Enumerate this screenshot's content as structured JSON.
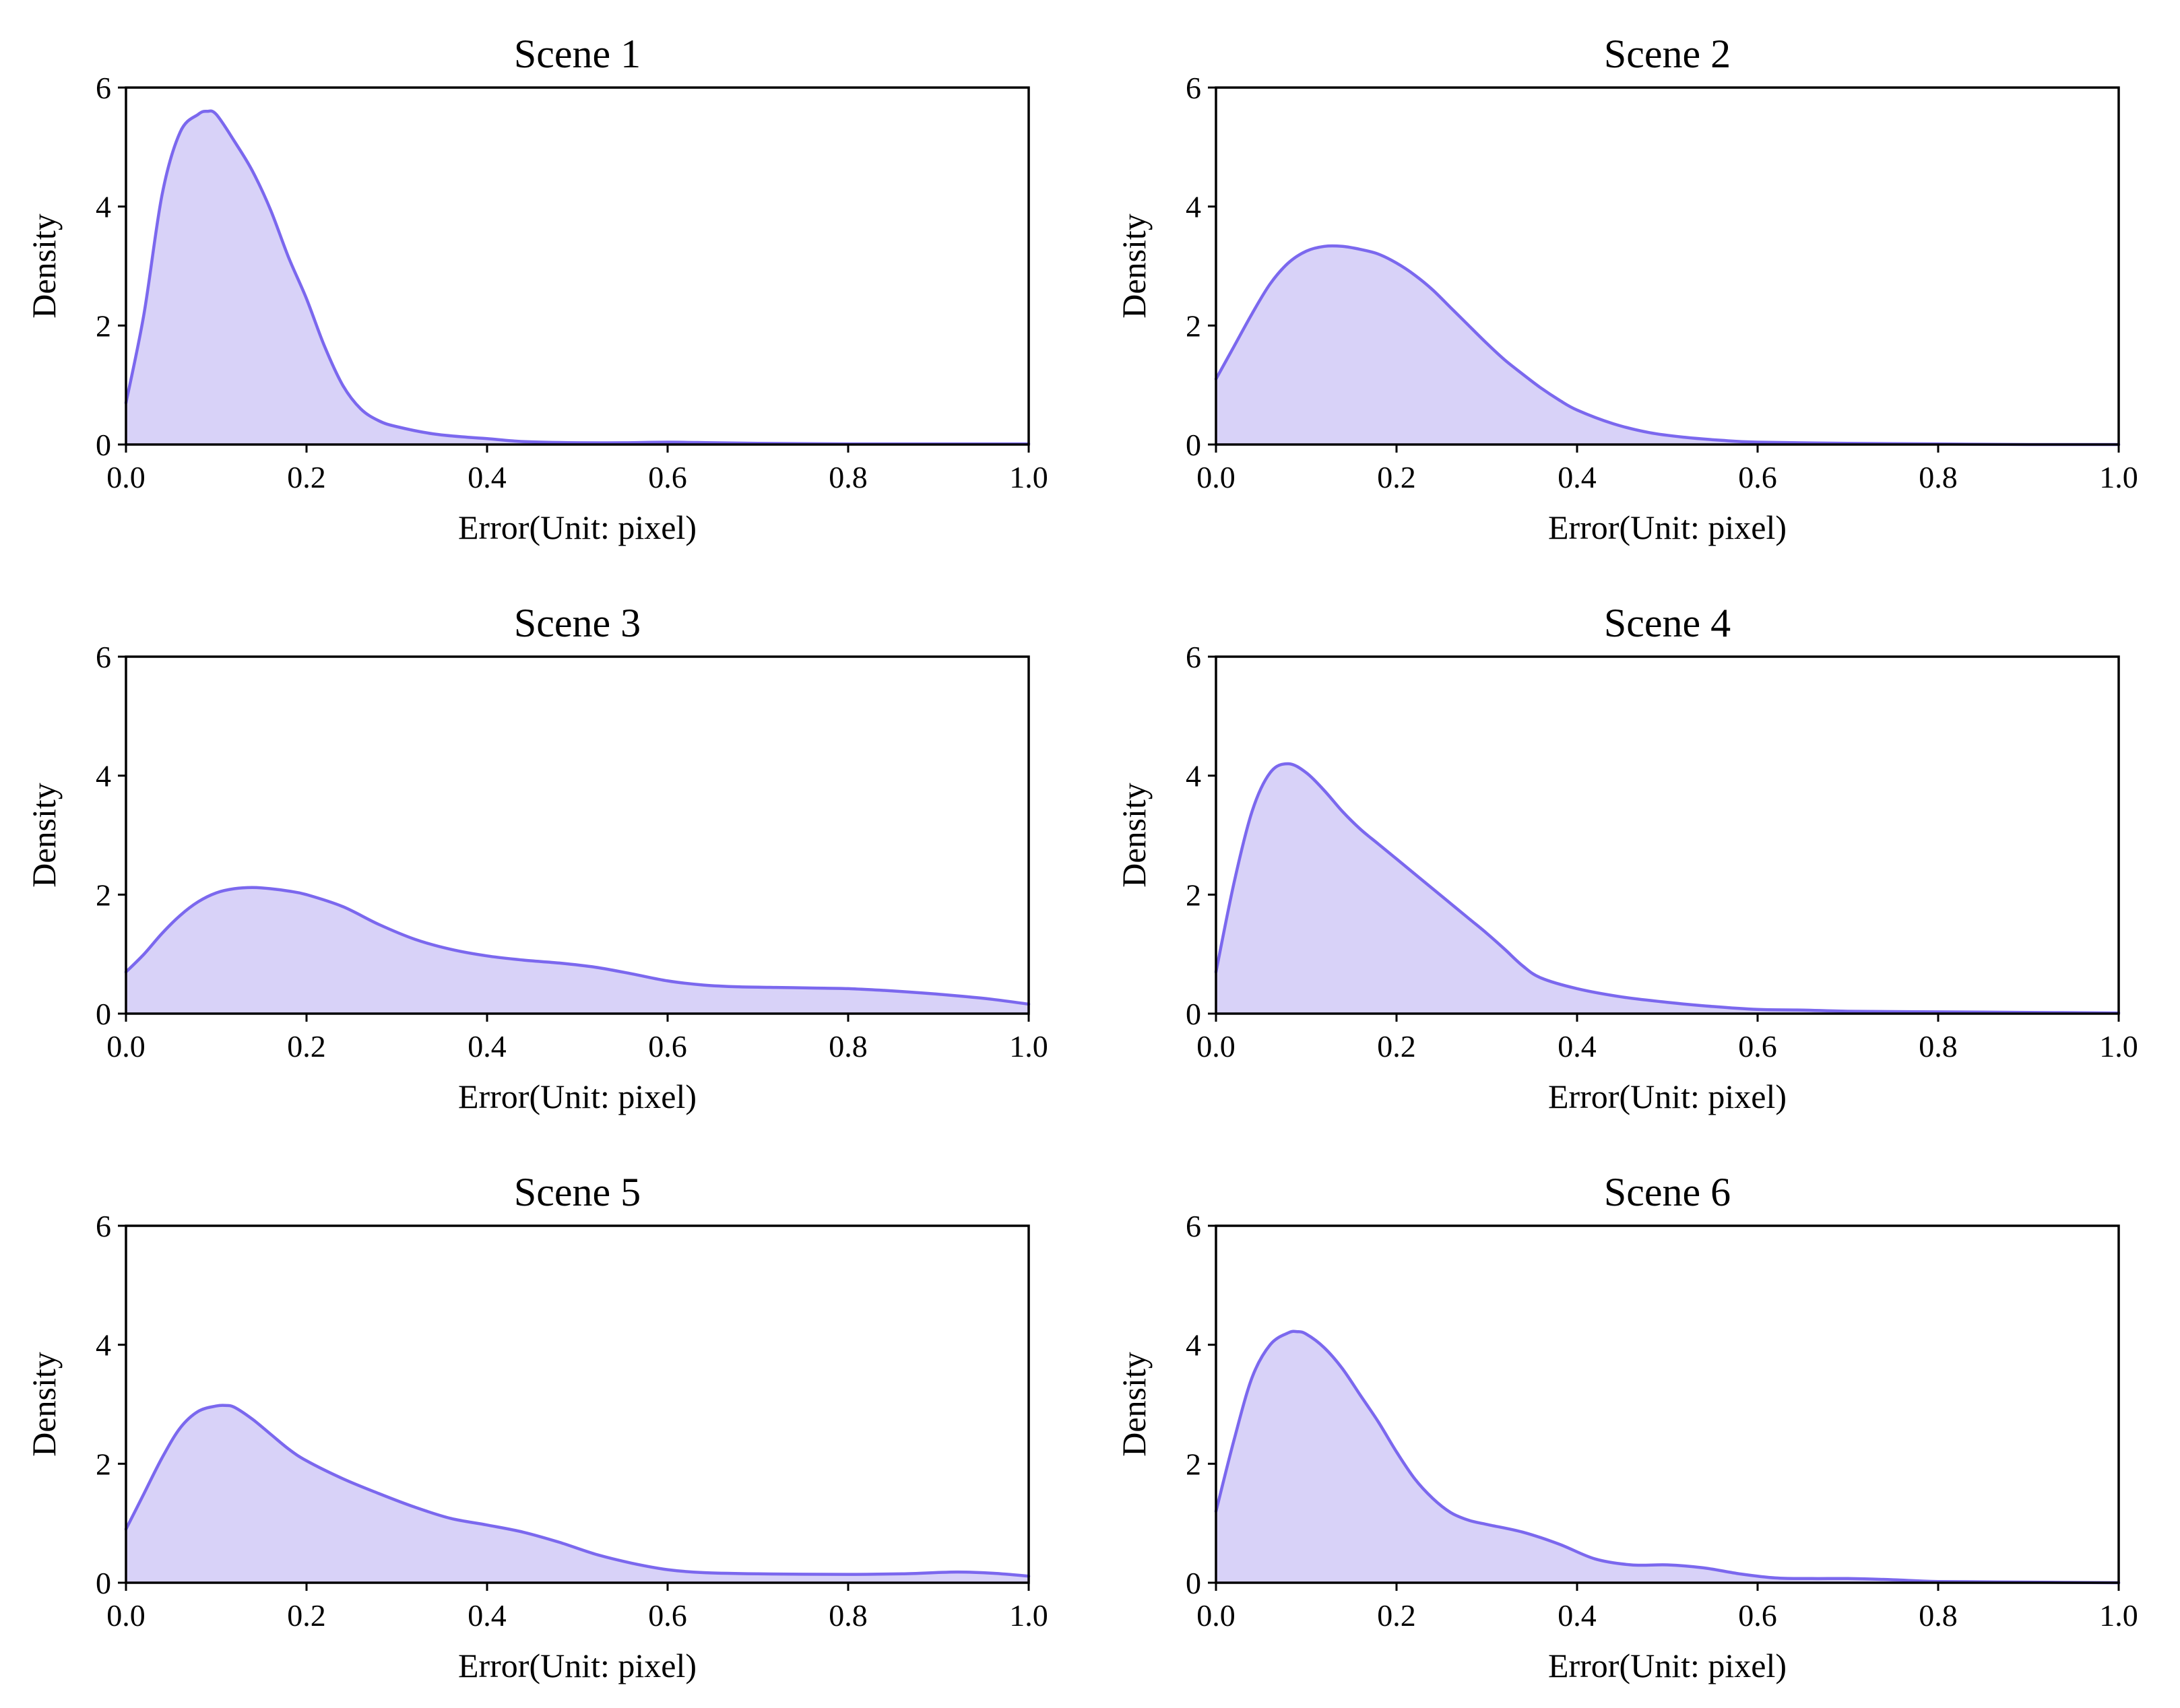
{
  "figure": {
    "fill_color": "#d8d2f8",
    "line_color": "#7b68ee"
  },
  "chart_data": [
    {
      "type": "area",
      "title": "Scene 1",
      "xlabel": "Error(Unit: pixel)",
      "ylabel": "Density",
      "xlim": [
        0,
        1
      ],
      "ylim": [
        0,
        6
      ],
      "xticks": [
        "0.0",
        "0.2",
        "0.4",
        "0.6",
        "0.8",
        "1.0"
      ],
      "yticks": [
        "0",
        "2",
        "4",
        "6"
      ],
      "x": [
        0.0,
        0.02,
        0.04,
        0.06,
        0.08,
        0.09,
        0.1,
        0.12,
        0.14,
        0.16,
        0.18,
        0.2,
        0.22,
        0.24,
        0.26,
        0.28,
        0.3,
        0.34,
        0.38,
        0.4,
        0.44,
        0.5,
        0.55,
        0.6,
        0.65,
        0.7,
        0.8,
        0.9,
        1.0
      ],
      "y": [
        0.7,
        2.2,
        4.2,
        5.25,
        5.55,
        5.6,
        5.55,
        5.1,
        4.6,
        3.95,
        3.15,
        2.45,
        1.65,
        1.0,
        0.6,
        0.4,
        0.3,
        0.18,
        0.12,
        0.1,
        0.05,
        0.03,
        0.03,
        0.04,
        0.03,
        0.02,
        0.01,
        0.01,
        0.01
      ]
    },
    {
      "type": "area",
      "title": "Scene 2",
      "xlabel": "Error(Unit: pixel)",
      "ylabel": "Density",
      "xlim": [
        0,
        1
      ],
      "ylim": [
        0,
        6
      ],
      "xticks": [
        "0.0",
        "0.2",
        "0.4",
        "0.6",
        "0.8",
        "1.0"
      ],
      "yticks": [
        "0",
        "2",
        "4",
        "6"
      ],
      "x": [
        0.0,
        0.02,
        0.04,
        0.06,
        0.08,
        0.1,
        0.12,
        0.14,
        0.16,
        0.18,
        0.2,
        0.22,
        0.24,
        0.26,
        0.28,
        0.3,
        0.32,
        0.34,
        0.36,
        0.38,
        0.4,
        0.44,
        0.48,
        0.52,
        0.56,
        0.6,
        0.7,
        0.8,
        0.9,
        1.0
      ],
      "y": [
        1.1,
        1.65,
        2.2,
        2.7,
        3.05,
        3.25,
        3.33,
        3.33,
        3.28,
        3.2,
        3.05,
        2.85,
        2.6,
        2.3,
        2.0,
        1.7,
        1.42,
        1.18,
        0.95,
        0.75,
        0.58,
        0.35,
        0.2,
        0.12,
        0.07,
        0.04,
        0.02,
        0.01,
        0.0,
        0.0
      ]
    },
    {
      "type": "area",
      "title": "Scene 3",
      "xlabel": "Error(Unit: pixel)",
      "ylabel": "Density",
      "xlim": [
        0,
        1
      ],
      "ylim": [
        0,
        6
      ],
      "xticks": [
        "0.0",
        "0.2",
        "0.4",
        "0.6",
        "0.8",
        "1.0"
      ],
      "yticks": [
        "0",
        "2",
        "4",
        "6"
      ],
      "x": [
        0.0,
        0.02,
        0.04,
        0.06,
        0.08,
        0.1,
        0.12,
        0.14,
        0.16,
        0.18,
        0.2,
        0.24,
        0.28,
        0.32,
        0.36,
        0.4,
        0.44,
        0.48,
        0.52,
        0.56,
        0.6,
        0.64,
        0.68,
        0.72,
        0.76,
        0.8,
        0.84,
        0.88,
        0.92,
        0.96,
        1.0
      ],
      "y": [
        0.7,
        1.0,
        1.35,
        1.65,
        1.88,
        2.03,
        2.1,
        2.12,
        2.1,
        2.06,
        2.0,
        1.8,
        1.5,
        1.25,
        1.08,
        0.97,
        0.9,
        0.85,
        0.78,
        0.67,
        0.55,
        0.48,
        0.45,
        0.44,
        0.43,
        0.42,
        0.39,
        0.35,
        0.3,
        0.24,
        0.16
      ]
    },
    {
      "type": "area",
      "title": "Scene 4",
      "xlabel": "Error(Unit: pixel)",
      "ylabel": "Density",
      "xlim": [
        0,
        1
      ],
      "ylim": [
        0,
        6
      ],
      "xticks": [
        "0.0",
        "0.2",
        "0.4",
        "0.6",
        "0.8",
        "1.0"
      ],
      "yticks": [
        "0",
        "2",
        "4",
        "6"
      ],
      "x": [
        0.0,
        0.02,
        0.04,
        0.06,
        0.08,
        0.1,
        0.12,
        0.14,
        0.16,
        0.18,
        0.2,
        0.24,
        0.28,
        0.3,
        0.32,
        0.34,
        0.36,
        0.4,
        0.45,
        0.5,
        0.55,
        0.6,
        0.65,
        0.7,
        0.8,
        0.9,
        1.0
      ],
      "y": [
        0.7,
        2.2,
        3.4,
        4.05,
        4.2,
        4.05,
        3.75,
        3.4,
        3.1,
        2.85,
        2.6,
        2.1,
        1.6,
        1.35,
        1.08,
        0.8,
        0.6,
        0.42,
        0.28,
        0.19,
        0.12,
        0.07,
        0.06,
        0.04,
        0.03,
        0.02,
        0.01
      ]
    },
    {
      "type": "area",
      "title": "Scene 5",
      "xlabel": "Error(Unit: pixel)",
      "ylabel": "Density",
      "xlim": [
        0,
        1
      ],
      "ylim": [
        0,
        6
      ],
      "xticks": [
        "0.0",
        "0.2",
        "0.4",
        "0.6",
        "0.8",
        "1.0"
      ],
      "yticks": [
        "0",
        "2",
        "4",
        "6"
      ],
      "x": [
        0.0,
        0.02,
        0.04,
        0.06,
        0.08,
        0.1,
        0.11,
        0.12,
        0.14,
        0.16,
        0.18,
        0.2,
        0.24,
        0.28,
        0.32,
        0.36,
        0.4,
        0.44,
        0.48,
        0.52,
        0.56,
        0.6,
        0.64,
        0.7,
        0.8,
        0.86,
        0.92,
        0.96,
        1.0
      ],
      "y": [
        0.9,
        1.5,
        2.1,
        2.6,
        2.88,
        2.97,
        2.98,
        2.95,
        2.75,
        2.5,
        2.25,
        2.05,
        1.75,
        1.5,
        1.27,
        1.08,
        0.97,
        0.85,
        0.68,
        0.48,
        0.33,
        0.22,
        0.17,
        0.15,
        0.14,
        0.15,
        0.18,
        0.16,
        0.11
      ]
    },
    {
      "type": "area",
      "title": "Scene 6",
      "xlabel": "Error(Unit: pixel)",
      "ylabel": "Density",
      "xlim": [
        0,
        1
      ],
      "ylim": [
        0,
        6
      ],
      "xticks": [
        "0.0",
        "0.2",
        "0.4",
        "0.6",
        "0.8",
        "1.0"
      ],
      "yticks": [
        "0",
        "2",
        "4",
        "6"
      ],
      "x": [
        0.0,
        0.02,
        0.04,
        0.06,
        0.08,
        0.09,
        0.1,
        0.12,
        0.14,
        0.16,
        0.18,
        0.2,
        0.22,
        0.24,
        0.26,
        0.28,
        0.3,
        0.34,
        0.38,
        0.42,
        0.46,
        0.5,
        0.54,
        0.58,
        0.62,
        0.66,
        0.7,
        0.75,
        0.8,
        0.9,
        1.0
      ],
      "y": [
        1.2,
        2.4,
        3.45,
        4.0,
        4.2,
        4.22,
        4.18,
        3.95,
        3.6,
        3.15,
        2.7,
        2.2,
        1.75,
        1.42,
        1.18,
        1.05,
        0.98,
        0.85,
        0.65,
        0.4,
        0.3,
        0.3,
        0.25,
        0.15,
        0.08,
        0.07,
        0.07,
        0.05,
        0.02,
        0.01,
        0.0
      ]
    }
  ]
}
